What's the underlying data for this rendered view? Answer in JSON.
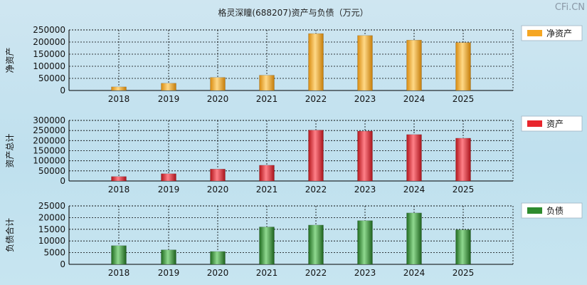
{
  "title": "格灵深瞳(688207)资产与负债（万元）",
  "watermark": "CFi.CN",
  "chart_data": [
    {
      "type": "bar",
      "name": "净资产",
      "ylabel": "净资产",
      "legend": "净资产",
      "color": "#f5a623",
      "categories": [
        "2018",
        "2019",
        "2020",
        "2021",
        "2022",
        "2023",
        "2024",
        "2025"
      ],
      "values": [
        15000,
        30000,
        54000,
        63000,
        235000,
        227000,
        208000,
        198000
      ],
      "ylim": [
        0,
        250000
      ],
      "yticks": [
        0,
        50000,
        100000,
        150000,
        200000,
        250000
      ],
      "grid": true,
      "legend_position": "right"
    },
    {
      "type": "bar",
      "name": "资产",
      "ylabel": "资产总计",
      "legend": "资产",
      "color": "#e8262d",
      "categories": [
        "2018",
        "2019",
        "2020",
        "2021",
        "2022",
        "2023",
        "2024",
        "2025"
      ],
      "values": [
        22000,
        36000,
        59000,
        78000,
        252000,
        247000,
        230000,
        212000
      ],
      "ylim": [
        0,
        300000
      ],
      "yticks": [
        0,
        50000,
        100000,
        150000,
        200000,
        250000,
        300000
      ],
      "grid": true,
      "legend_position": "right"
    },
    {
      "type": "bar",
      "name": "负债",
      "ylabel": "负债合计",
      "legend": "负债",
      "color": "#2e8b2e",
      "categories": [
        "2018",
        "2019",
        "2020",
        "2021",
        "2022",
        "2023",
        "2024",
        "2025"
      ],
      "values": [
        8000,
        6200,
        5500,
        16000,
        16800,
        18700,
        22000,
        14800
      ],
      "ylim": [
        0,
        25000
      ],
      "yticks": [
        0,
        5000,
        10000,
        15000,
        20000,
        25000
      ],
      "grid": true,
      "legend_position": "right"
    }
  ]
}
